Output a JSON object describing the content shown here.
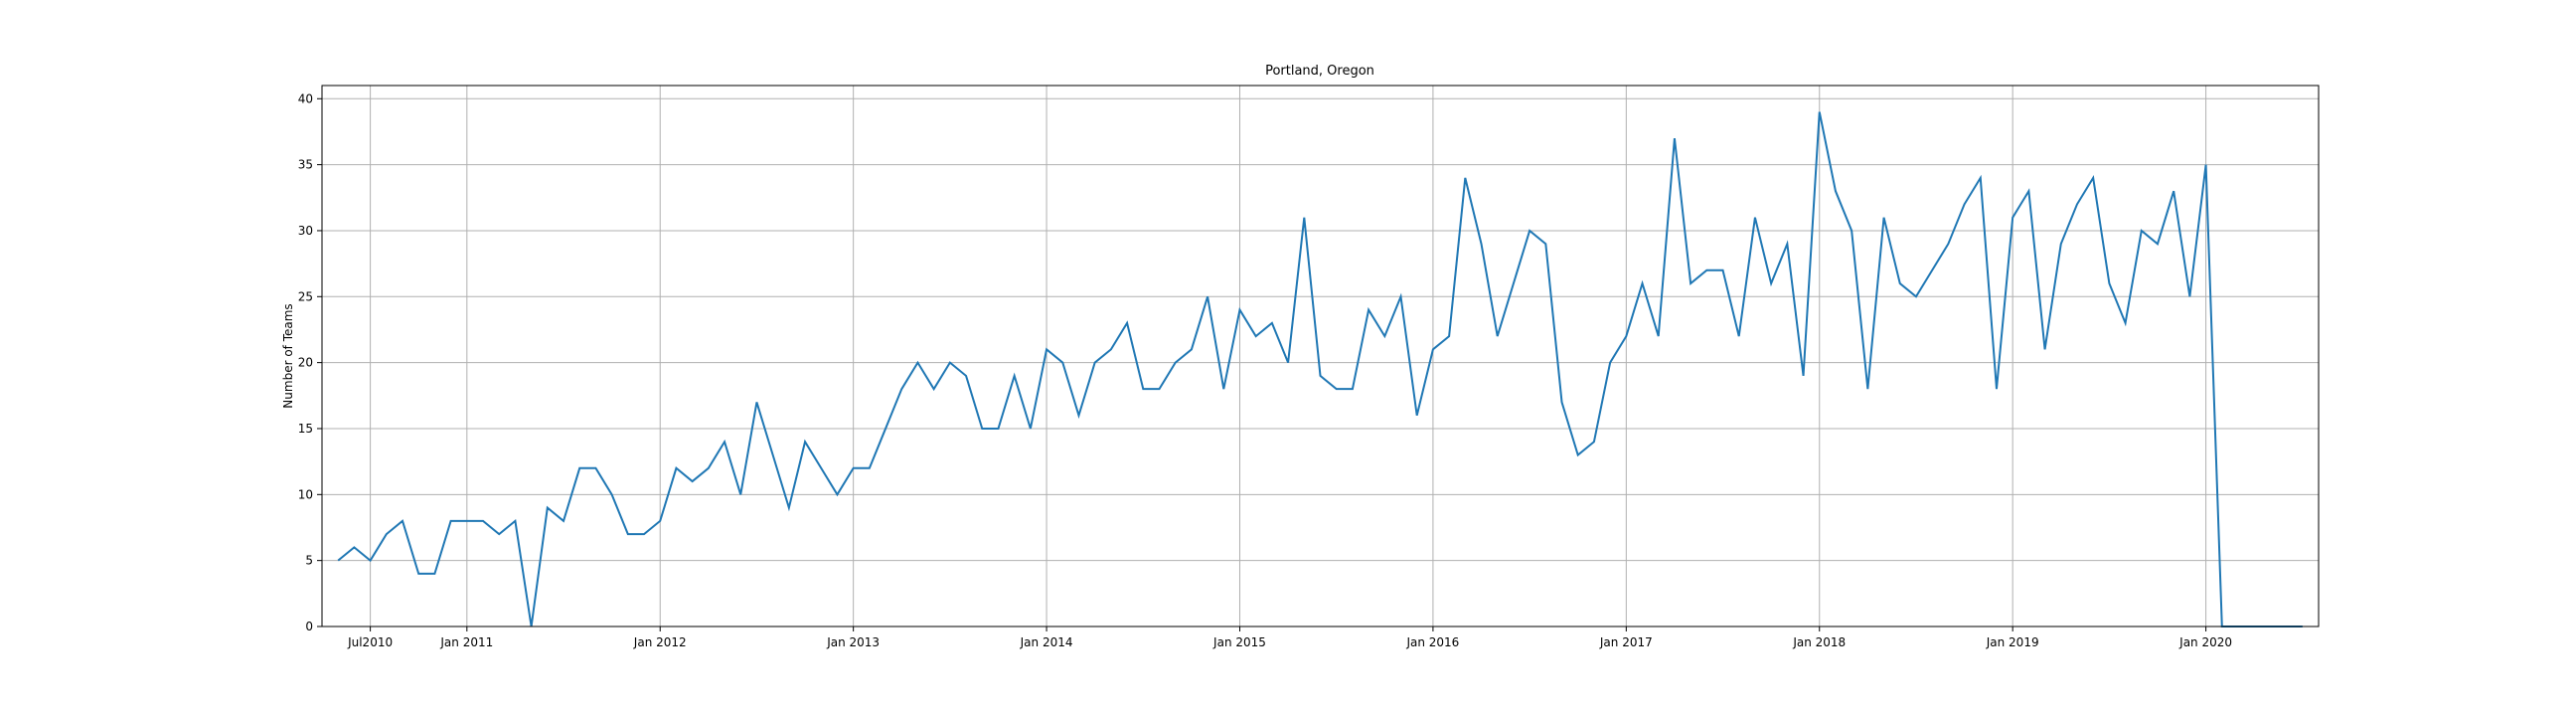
{
  "chart_data": {
    "type": "line",
    "title": "Portland, Oregon",
    "y_label": "Number of Teams",
    "x": [
      "2010-05",
      "2010-06",
      "2010-07",
      "2010-08",
      "2010-09",
      "2010-10",
      "2010-11",
      "2010-12",
      "2011-01",
      "2011-02",
      "2011-03",
      "2011-04",
      "2011-05",
      "2011-06",
      "2011-07",
      "2011-08",
      "2011-09",
      "2011-10",
      "2011-11",
      "2011-12",
      "2012-01",
      "2012-02",
      "2012-03",
      "2012-04",
      "2012-05",
      "2012-06",
      "2012-07",
      "2012-08",
      "2012-09",
      "2012-10",
      "2012-11",
      "2012-12",
      "2013-01",
      "2013-02",
      "2013-03",
      "2013-04",
      "2013-05",
      "2013-06",
      "2013-07",
      "2013-08",
      "2013-09",
      "2013-10",
      "2013-11",
      "2013-12",
      "2014-01",
      "2014-02",
      "2014-03",
      "2014-04",
      "2014-05",
      "2014-06",
      "2014-07",
      "2014-08",
      "2014-09",
      "2014-10",
      "2014-11",
      "2014-12",
      "2015-01",
      "2015-02",
      "2015-03",
      "2015-04",
      "2015-05",
      "2015-06",
      "2015-07",
      "2015-08",
      "2015-09",
      "2015-10",
      "2015-11",
      "2015-12",
      "2016-01",
      "2016-02",
      "2016-03",
      "2016-04",
      "2016-05",
      "2016-06",
      "2016-07",
      "2016-08",
      "2016-09",
      "2016-10",
      "2016-11",
      "2016-12",
      "2017-01",
      "2017-02",
      "2017-03",
      "2017-04",
      "2017-05",
      "2017-06",
      "2017-07",
      "2017-08",
      "2017-09",
      "2017-10",
      "2017-11",
      "2017-12",
      "2018-01",
      "2018-02",
      "2018-03",
      "2018-04",
      "2018-05",
      "2018-06",
      "2018-07",
      "2018-08",
      "2018-09",
      "2018-10",
      "2018-11",
      "2018-12",
      "2019-01",
      "2019-02",
      "2019-03",
      "2019-04",
      "2019-05",
      "2019-06",
      "2019-07",
      "2019-08",
      "2019-09",
      "2019-10",
      "2019-11",
      "2019-12",
      "2020-01",
      "2020-02",
      "2020-03",
      "2020-04",
      "2020-05",
      "2020-06",
      "2020-07"
    ],
    "series": [
      {
        "name": "Number of Teams",
        "color": "#1f77b4",
        "values": [
          5,
          6,
          5,
          7,
          8,
          4,
          4,
          8,
          8,
          8,
          7,
          8,
          0,
          9,
          8,
          12,
          12,
          10,
          7,
          7,
          8,
          12,
          11,
          12,
          14,
          10,
          17,
          13,
          9,
          14,
          12,
          10,
          12,
          12,
          15,
          18,
          20,
          18,
          20,
          19,
          15,
          15,
          19,
          15,
          21,
          20,
          16,
          20,
          21,
          23,
          18,
          18,
          20,
          21,
          25,
          18,
          24,
          22,
          23,
          20,
          31,
          19,
          18,
          18,
          24,
          22,
          25,
          16,
          21,
          22,
          34,
          29,
          22,
          26,
          30,
          29,
          17,
          13,
          14,
          20,
          22,
          26,
          22,
          37,
          26,
          27,
          27,
          22,
          31,
          26,
          29,
          19,
          39,
          33,
          30,
          18,
          31,
          26,
          25,
          27,
          29,
          32,
          34,
          18,
          31,
          33,
          21,
          29,
          32,
          34,
          26,
          23,
          30,
          29,
          33,
          25,
          35,
          0,
          0,
          0,
          0,
          0,
          0
        ]
      }
    ],
    "xlim": [
      "2010-04",
      "2020-08"
    ],
    "xticks": [
      {
        "value": "2010-07",
        "label": "Jul2010"
      },
      {
        "value": "2011-01",
        "label": "Jan 2011"
      },
      {
        "value": "2012-01",
        "label": "Jan 2012"
      },
      {
        "value": "2013-01",
        "label": "Jan 2013"
      },
      {
        "value": "2014-01",
        "label": "Jan 2014"
      },
      {
        "value": "2015-01",
        "label": "Jan 2015"
      },
      {
        "value": "2016-01",
        "label": "Jan 2016"
      },
      {
        "value": "2017-01",
        "label": "Jan 2017"
      },
      {
        "value": "2018-01",
        "label": "Jan 2018"
      },
      {
        "value": "2019-01",
        "label": "Jan 2019"
      },
      {
        "value": "2020-01",
        "label": "Jan 2020"
      }
    ],
    "ylim": [
      0,
      41
    ],
    "yticks": [
      0,
      5,
      10,
      15,
      20,
      25,
      30,
      35,
      40
    ],
    "grid": true
  }
}
